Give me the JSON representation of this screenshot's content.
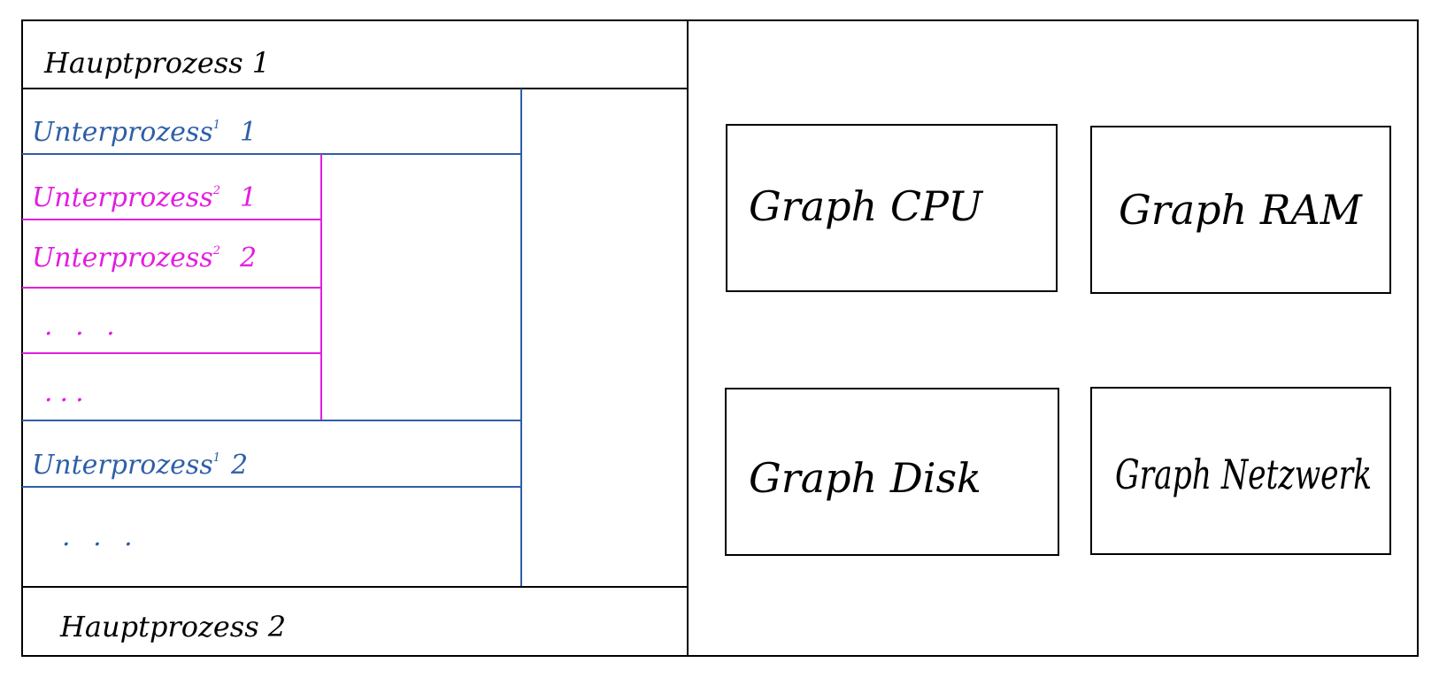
{
  "colors": {
    "outline": "#000000",
    "level1": "#2e5fa8",
    "level2": "#e21ee0",
    "background": "#ffffff"
  },
  "process_list": {
    "main_process_1": "Hauptprozess 1",
    "main_process_2": "Hauptprozess 2",
    "subprocess_1_1": {
      "label": "Unterprozess",
      "sup": "1",
      "number": "1"
    },
    "subprocess_2_1": {
      "label": "Unterprozess",
      "sup": "2",
      "number": "1"
    },
    "subprocess_2_2": {
      "label": "Unterprozess",
      "sup": "2",
      "number": "2"
    },
    "level2_ellipsis_a": ". . .",
    "level2_ellipsis_b": "...",
    "subprocess_1_2": {
      "label": "Unterprozess",
      "sup": "1",
      "number": "2"
    },
    "level1_ellipsis": ". . ."
  },
  "graphs": {
    "cpu": "Graph CPU",
    "ram": "Graph RAM",
    "disk": "Graph Disk",
    "network": "Graph Netzwerk"
  }
}
